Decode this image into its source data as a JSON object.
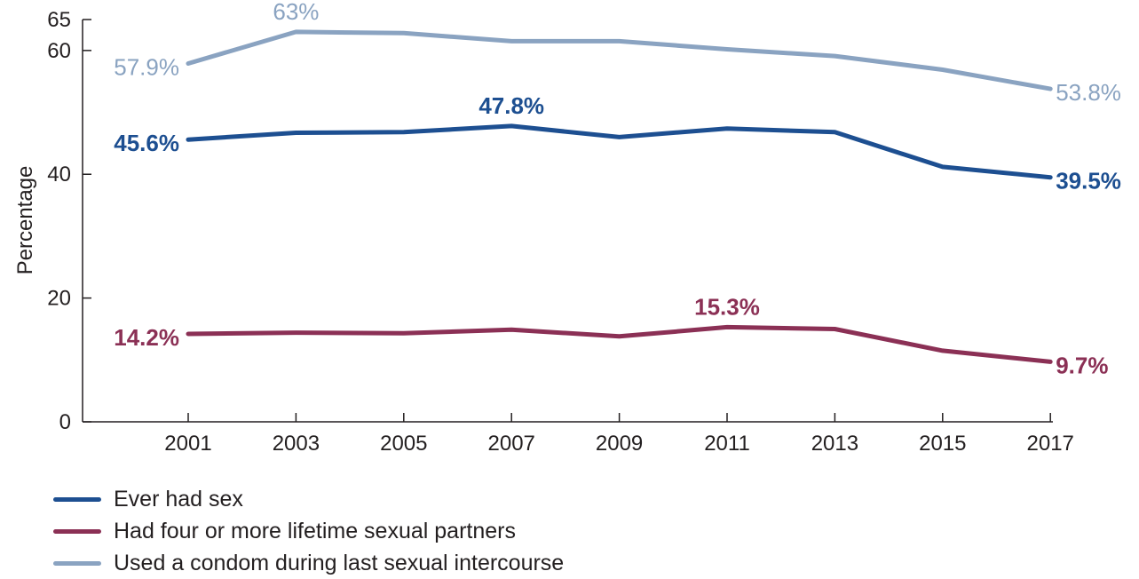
{
  "chart_data": {
    "type": "line",
    "ylabel": "Percentage",
    "xlabel": "",
    "x": [
      "2001",
      "2003",
      "2005",
      "2007",
      "2009",
      "2011",
      "2013",
      "2015",
      "2017"
    ],
    "y_ticks": [
      "0",
      "20",
      "40",
      "60",
      "65"
    ],
    "ylim": [
      0,
      65
    ],
    "grid": false,
    "legend_position": "bottom-left",
    "series": [
      {
        "name": "Ever had sex",
        "color": "#1d4f91",
        "values": [
          45.6,
          46.7,
          46.8,
          47.8,
          46.0,
          47.4,
          46.8,
          41.2,
          39.5
        ],
        "annotations": [
          {
            "index": 0,
            "text": "45.6%"
          },
          {
            "index": 3,
            "text": "47.8%"
          },
          {
            "index": 8,
            "text": "39.5%"
          }
        ]
      },
      {
        "name": "Had four or more lifetime sexual partners",
        "color": "#8b3055",
        "values": [
          14.2,
          14.4,
          14.3,
          14.9,
          13.8,
          15.3,
          15.0,
          11.5,
          9.7
        ],
        "annotations": [
          {
            "index": 0,
            "text": "14.2%"
          },
          {
            "index": 5,
            "text": "15.3%"
          },
          {
            "index": 8,
            "text": "9.7%"
          }
        ]
      },
      {
        "name": "Used a condom during last sexual intercourse",
        "color": "#8aa3c1",
        "values": [
          57.9,
          63.0,
          62.8,
          61.5,
          61.5,
          60.2,
          59.1,
          56.9,
          53.8
        ],
        "annotations": [
          {
            "index": 0,
            "text": "57.9%"
          },
          {
            "index": 1,
            "text": "63%"
          },
          {
            "index": 8,
            "text": "53.8%"
          }
        ]
      }
    ]
  }
}
